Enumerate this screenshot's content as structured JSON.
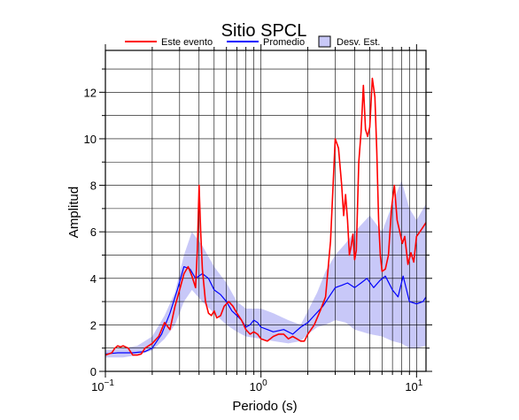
{
  "chart_data": {
    "type": "line",
    "title": "Sitio SPCL",
    "xlabel": "Periodo (s)",
    "ylabel": "Amplitud",
    "xscale": "log",
    "xlim": [
      0.1,
      11.5
    ],
    "ylim": [
      0,
      13.8
    ],
    "grid": true,
    "legend_placement": "top-center",
    "x_tick_labels": [
      {
        "value": 0.1,
        "base": "10",
        "exp": "−1"
      },
      {
        "value": 1,
        "base": "10",
        "exp": "0"
      },
      {
        "value": 10,
        "base": "10",
        "exp": "1"
      }
    ],
    "y_ticks": [
      0,
      2,
      4,
      6,
      8,
      10,
      12
    ],
    "y_tick_labels": [
      "0",
      "2",
      "4",
      "6",
      "8",
      "10",
      "12"
    ],
    "legend": [
      {
        "label": "Este evento",
        "kind": "line",
        "color": "#ff0000"
      },
      {
        "label": "Promedio",
        "kind": "line",
        "color": "#0000ff"
      },
      {
        "label": "Desv. Est.",
        "kind": "patch",
        "color": "#c8c8f8"
      }
    ],
    "band": {
      "name": "Desv. Est.",
      "color": "#c8c8f8",
      "x": [
        0.1,
        0.13,
        0.16,
        0.2,
        0.24,
        0.28,
        0.32,
        0.36,
        0.42,
        0.5,
        0.6,
        0.7,
        0.8,
        1.0,
        1.2,
        1.5,
        1.8,
        2.0,
        2.3,
        2.6,
        3.0,
        3.5,
        4.0,
        5.0,
        6.0,
        7.0,
        8.0,
        9.0,
        10.0,
        11.5
      ],
      "upper": [
        0.9,
        1.0,
        1.1,
        1.5,
        2.4,
        3.4,
        5.0,
        6.0,
        5.4,
        4.5,
        3.8,
        3.0,
        2.7,
        2.7,
        2.5,
        2.2,
        2.0,
        2.6,
        3.4,
        4.3,
        5.0,
        5.5,
        6.0,
        6.7,
        6.0,
        7.2,
        8.2,
        7.0,
        6.5,
        7.2
      ],
      "lower": [
        0.6,
        0.6,
        0.7,
        0.9,
        1.4,
        2.0,
        3.0,
        3.5,
        3.0,
        2.5,
        2.0,
        1.7,
        1.5,
        1.4,
        1.3,
        1.2,
        1.3,
        1.6,
        1.9,
        2.0,
        2.2,
        2.1,
        1.8,
        1.6,
        1.5,
        1.3,
        1.2,
        1.0,
        1.0,
        1.1
      ]
    },
    "series": [
      {
        "name": "Promedio",
        "color": "#0000ff",
        "x": [
          0.1,
          0.12,
          0.15,
          0.18,
          0.2,
          0.23,
          0.26,
          0.29,
          0.32,
          0.35,
          0.38,
          0.42,
          0.46,
          0.5,
          0.55,
          0.6,
          0.65,
          0.7,
          0.75,
          0.8,
          0.85,
          0.9,
          0.95,
          1.0,
          1.1,
          1.2,
          1.4,
          1.6,
          1.8,
          2.0,
          2.2,
          2.5,
          2.8,
          3.0,
          3.3,
          3.6,
          4.0,
          4.4,
          4.8,
          5.3,
          5.8,
          6.3,
          7.0,
          7.6,
          8.2,
          9.0,
          10.0,
          11.0,
          11.5
        ],
        "y": [
          0.75,
          0.8,
          0.8,
          0.85,
          1.0,
          1.6,
          2.5,
          3.5,
          4.5,
          4.4,
          4.0,
          4.2,
          4.0,
          3.5,
          3.3,
          3.0,
          2.6,
          2.4,
          2.2,
          1.9,
          2.0,
          2.2,
          2.1,
          1.9,
          1.8,
          1.7,
          1.8,
          1.6,
          1.9,
          2.1,
          2.4,
          2.8,
          3.3,
          3.6,
          3.7,
          3.8,
          3.6,
          3.8,
          4.0,
          3.6,
          3.9,
          4.1,
          3.5,
          3.2,
          4.1,
          3.0,
          2.9,
          3.0,
          3.2
        ]
      },
      {
        "name": "Este evento",
        "color": "#ff0000",
        "x": [
          0.1,
          0.11,
          0.115,
          0.12,
          0.125,
          0.13,
          0.14,
          0.15,
          0.16,
          0.17,
          0.18,
          0.2,
          0.22,
          0.24,
          0.26,
          0.28,
          0.3,
          0.32,
          0.34,
          0.36,
          0.38,
          0.39,
          0.4,
          0.41,
          0.42,
          0.44,
          0.46,
          0.48,
          0.5,
          0.52,
          0.55,
          0.58,
          0.62,
          0.66,
          0.7,
          0.75,
          0.8,
          0.85,
          0.9,
          0.95,
          1.0,
          1.1,
          1.2,
          1.3,
          1.4,
          1.5,
          1.6,
          1.7,
          1.8,
          1.9,
          2.0,
          2.2,
          2.4,
          2.6,
          2.8,
          3.0,
          3.15,
          3.3,
          3.4,
          3.5,
          3.6,
          3.7,
          3.8,
          3.9,
          4.0,
          4.1,
          4.25,
          4.4,
          4.55,
          4.7,
          4.85,
          5.0,
          5.2,
          5.4,
          5.55,
          5.7,
          5.85,
          6.0,
          6.3,
          6.6,
          6.9,
          7.2,
          7.5,
          7.8,
          8.1,
          8.4,
          8.8,
          9.2,
          9.6,
          10.0,
          10.5,
          11.0,
          11.5
        ],
        "y": [
          0.7,
          0.8,
          1.0,
          1.1,
          1.05,
          1.1,
          1.0,
          0.7,
          0.7,
          0.75,
          1.0,
          1.2,
          1.5,
          2.1,
          1.8,
          2.8,
          3.5,
          4.2,
          4.5,
          4.1,
          3.6,
          5.2,
          8.0,
          6.0,
          4.4,
          3.0,
          2.5,
          2.4,
          2.6,
          2.3,
          2.4,
          2.8,
          3.0,
          2.8,
          2.5,
          2.2,
          1.8,
          1.6,
          1.7,
          1.6,
          1.4,
          1.3,
          1.5,
          1.6,
          1.6,
          1.4,
          1.5,
          1.4,
          1.3,
          1.3,
          1.6,
          2.0,
          2.6,
          3.2,
          5.6,
          10.0,
          9.6,
          8.0,
          6.7,
          7.6,
          6.5,
          5.0,
          5.4,
          5.9,
          4.8,
          5.2,
          9.0,
          10.3,
          12.3,
          10.4,
          10.1,
          10.5,
          12.6,
          11.8,
          9.5,
          6.5,
          5.0,
          4.3,
          4.4,
          5.0,
          7.0,
          8.0,
          6.5,
          6.0,
          5.5,
          5.8,
          4.6,
          5.1,
          4.7,
          5.8,
          6.0,
          6.2,
          6.4
        ]
      }
    ]
  }
}
